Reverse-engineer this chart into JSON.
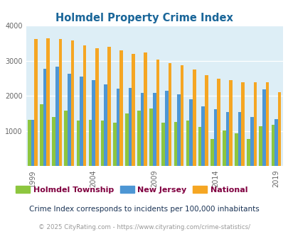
{
  "title": "Holmdel Property Crime Index",
  "years": [
    1999,
    2000,
    2001,
    2002,
    2003,
    2004,
    2005,
    2006,
    2007,
    2008,
    2009,
    2010,
    2011,
    2012,
    2013,
    2014,
    2015,
    2016,
    2017,
    2018,
    2019
  ],
  "holmdel_vals": [
    1320,
    1760,
    1390,
    1580,
    1300,
    1320,
    1290,
    1240,
    1510,
    1590,
    1640,
    1240,
    1260,
    1290,
    1120,
    770,
    1020,
    940,
    780,
    1140,
    1170
  ],
  "nj_vals": [
    1320,
    2780,
    2840,
    2640,
    2560,
    2460,
    2330,
    2210,
    2230,
    2080,
    2090,
    2140,
    2050,
    1900,
    1710,
    1620,
    1550,
    1550,
    1400,
    2190,
    1340
  ],
  "national_vals": [
    3620,
    3650,
    3620,
    3580,
    3440,
    3350,
    3390,
    3290,
    3200,
    3230,
    3040,
    2940,
    2870,
    2750,
    2600,
    2500,
    2450,
    2380,
    2380,
    2390,
    2100
  ],
  "color_holmdel": "#8dc63f",
  "color_nj": "#4d96d4",
  "color_national": "#f5a623",
  "bg_color": "#ddeef6",
  "title_color": "#1a6699",
  "legend_text_color": "#800040",
  "subtitle_color": "#1a3355",
  "footer_color": "#999999",
  "ylim": [
    0,
    4000
  ],
  "yticks": [
    0,
    1000,
    2000,
    3000,
    4000
  ],
  "tick_years": [
    1999,
    2004,
    2009,
    2014,
    2019
  ],
  "subtitle": "Crime Index corresponds to incidents per 100,000 inhabitants",
  "footer": "© 2025 CityRating.com - https://www.cityrating.com/crime-statistics/",
  "legend_labels": [
    "Holmdel Township",
    "New Jersey",
    "National"
  ]
}
